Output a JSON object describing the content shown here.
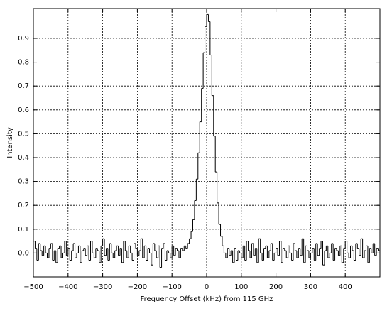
{
  "chart_data": {
    "type": "step",
    "xlabel": "Frequency Offset (kHz) from 115 GHz",
    "ylabel": "Intensity",
    "color": "#000000",
    "grid": true,
    "xlim": [
      -500,
      500
    ],
    "ylim": [
      -0.1,
      1.025
    ],
    "xticks": [
      {
        "value": -500,
        "label": "−500"
      },
      {
        "value": -400,
        "label": "−400"
      },
      {
        "value": -300,
        "label": "−300"
      },
      {
        "value": -200,
        "label": "−200"
      },
      {
        "value": -100,
        "label": "−100"
      },
      0,
      100,
      200,
      300,
      400
    ],
    "yticks": [
      {
        "value": 0,
        "label": "0.0"
      },
      0.1,
      0.2,
      0.3,
      0.4,
      0.5,
      0.6,
      0.7,
      0.8,
      0.9
    ],
    "x": [
      -500,
      -495,
      -490,
      -485,
      -480,
      -475,
      -470,
      -465,
      -460,
      -455,
      -450,
      -445,
      -440,
      -435,
      -430,
      -425,
      -420,
      -415,
      -410,
      -405,
      -400,
      -395,
      -390,
      -385,
      -380,
      -375,
      -370,
      -365,
      -360,
      -355,
      -350,
      -345,
      -340,
      -335,
      -330,
      -325,
      -320,
      -315,
      -310,
      -305,
      -300,
      -295,
      -290,
      -285,
      -280,
      -275,
      -270,
      -265,
      -260,
      -255,
      -250,
      -245,
      -240,
      -235,
      -230,
      -225,
      -220,
      -215,
      -210,
      -205,
      -200,
      -195,
      -190,
      -185,
      -180,
      -175,
      -170,
      -165,
      -160,
      -155,
      -150,
      -145,
      -140,
      -135,
      -130,
      -125,
      -120,
      -115,
      -110,
      -105,
      -100,
      -95,
      -90,
      -85,
      -80,
      -75,
      -70,
      -65,
      -60,
      -55,
      -50,
      -45,
      -40,
      -35,
      -30,
      -25,
      -20,
      -15,
      -10,
      -5,
      0,
      5,
      10,
      15,
      20,
      25,
      30,
      35,
      40,
      45,
      50,
      55,
      60,
      65,
      70,
      75,
      80,
      85,
      90,
      95,
      100,
      105,
      110,
      115,
      120,
      125,
      130,
      135,
      140,
      145,
      150,
      155,
      160,
      165,
      170,
      175,
      180,
      185,
      190,
      195,
      200,
      205,
      210,
      215,
      220,
      225,
      230,
      235,
      240,
      245,
      250,
      255,
      260,
      265,
      270,
      275,
      280,
      285,
      290,
      295,
      300,
      305,
      310,
      315,
      320,
      325,
      330,
      335,
      340,
      345,
      350,
      355,
      360,
      365,
      370,
      375,
      380,
      385,
      390,
      395,
      400,
      405,
      410,
      415,
      420,
      425,
      430,
      435,
      440,
      445,
      450,
      455,
      460,
      465,
      470,
      475,
      480,
      485,
      490,
      495
    ],
    "values": [
      0.05,
      0.02,
      -0.03,
      0.04,
      0.01,
      -0.01,
      0.03,
      0.0,
      -0.02,
      0.02,
      0.04,
      -0.03,
      0.01,
      -0.04,
      0.02,
      0.03,
      -0.02,
      0.0,
      0.05,
      -0.01,
      0.02,
      -0.03,
      0.01,
      0.04,
      -0.02,
      0.0,
      0.03,
      -0.04,
      0.01,
      0.02,
      -0.01,
      0.03,
      -0.03,
      0.05,
      0.0,
      -0.02,
      0.02,
      0.01,
      -0.04,
      0.03,
      0.06,
      -0.01,
      0.02,
      -0.03,
      0.04,
      0.0,
      -0.02,
      0.01,
      0.03,
      -0.01,
      0.02,
      -0.04,
      0.05,
      0.01,
      -0.02,
      0.03,
      0.0,
      -0.03,
      0.04,
      0.02,
      -0.01,
      0.01,
      0.06,
      -0.02,
      0.03,
      -0.03,
      0.02,
      0.0,
      -0.05,
      0.04,
      0.01,
      -0.02,
      0.03,
      -0.06,
      0.02,
      0.04,
      -0.03,
      0.01,
      0.0,
      -0.02,
      0.03,
      -0.01,
      0.02,
      0.01,
      -0.02,
      0.02,
      0.01,
      0.03,
      0.02,
      0.04,
      0.06,
      0.09,
      0.14,
      0.22,
      0.31,
      0.42,
      0.55,
      0.69,
      0.84,
      0.95,
      1.0,
      0.97,
      0.83,
      0.66,
      0.49,
      0.34,
      0.21,
      0.12,
      0.07,
      0.03,
      0.0,
      -0.02,
      0.02,
      -0.01,
      0.01,
      -0.04,
      0.02,
      -0.03,
      0.01,
      0.0,
      -0.02,
      0.03,
      -0.03,
      0.05,
      0.01,
      -0.02,
      0.04,
      -0.01,
      0.02,
      -0.04,
      0.06,
      0.0,
      -0.03,
      0.02,
      0.03,
      -0.02,
      0.01,
      0.04,
      -0.03,
      0.0,
      0.02,
      -0.01,
      0.05,
      -0.04,
      0.02,
      0.01,
      -0.02,
      0.03,
      0.0,
      -0.03,
      0.04,
      0.01,
      -0.02,
      0.02,
      -0.01,
      0.06,
      -0.04,
      0.03,
      0.01,
      -0.02,
      0.0,
      0.02,
      -0.03,
      0.04,
      -0.01,
      0.02,
      0.05,
      -0.05,
      0.01,
      0.03,
      -0.02,
      0.0,
      0.04,
      -0.03,
      0.02,
      0.01,
      -0.01,
      0.03,
      -0.04,
      0.02,
      0.05,
      0.0,
      -0.02,
      0.03,
      0.01,
      -0.03,
      0.04,
      0.02,
      -0.01,
      0.06,
      -0.02,
      0.01,
      0.03,
      -0.04,
      0.02,
      0.0,
      0.04,
      -0.01,
      0.02,
      0.01
    ]
  }
}
